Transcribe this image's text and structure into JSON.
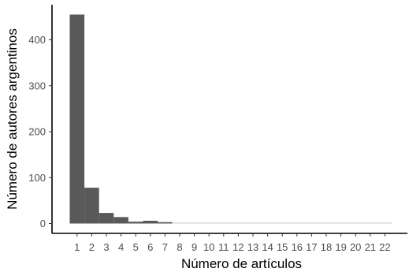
{
  "chart_data": {
    "type": "bar",
    "xlabel": "Número de artículos",
    "ylabel": "Número de autores argentinos",
    "categories": [
      "1",
      "2",
      "3",
      "4",
      "5",
      "6",
      "7",
      "8",
      "9",
      "10",
      "11",
      "12",
      "13",
      "14",
      "15",
      "16",
      "17",
      "18",
      "19",
      "20",
      "21",
      "22"
    ],
    "values": [
      455,
      78,
      23,
      14,
      4,
      6,
      3,
      1,
      0,
      0,
      0,
      1,
      0,
      1,
      0,
      0,
      0,
      0,
      0,
      0,
      0,
      1
    ],
    "ylim": [
      0,
      470
    ],
    "yticks": [
      0,
      100,
      200,
      300,
      400
    ],
    "grid": false,
    "legend": "none",
    "bar_color": "#595959",
    "axis_color": "#000000"
  }
}
